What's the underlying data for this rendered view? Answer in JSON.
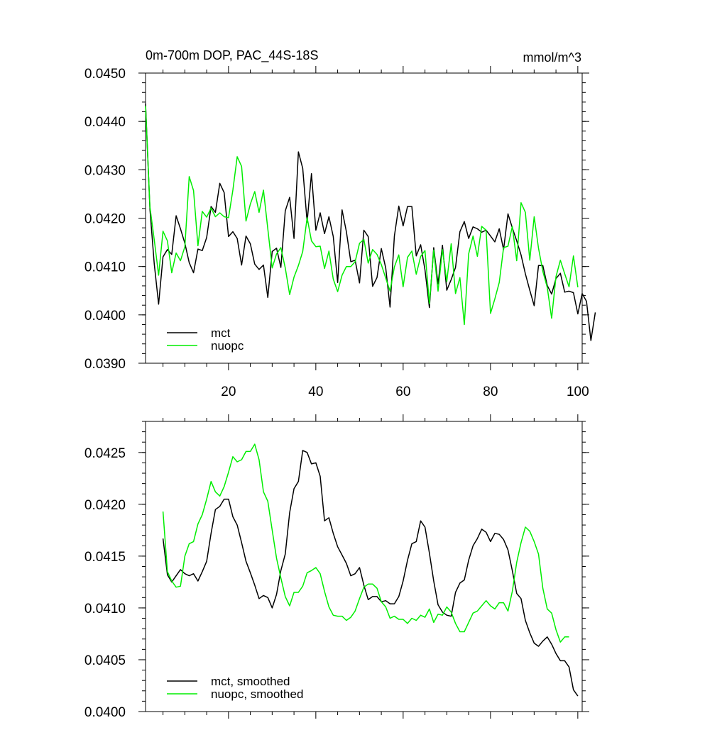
{
  "colors": {
    "mct": "#000000",
    "nuopc": "#00ee00",
    "axis": "#000000"
  },
  "chart_data": [
    {
      "type": "line",
      "title_left": "0m-700m DOP, PAC_44S-18S",
      "title_right": "mmol/m^3",
      "xlabel": "",
      "ylabel": "",
      "xlim": [
        1,
        101
      ],
      "ylim": [
        0.039,
        0.045
      ],
      "x_ticks": [
        20,
        40,
        60,
        80,
        100
      ],
      "x_tick_labels": [
        "20",
        "40",
        "60",
        "80",
        "100"
      ],
      "y_ticks": [
        0.039,
        0.04,
        0.041,
        0.042,
        0.043,
        0.044,
        0.045
      ],
      "y_tick_labels": [
        "0.0390",
        "0.0400",
        "0.0410",
        "0.0420",
        "0.0430",
        "0.0440",
        "0.0450"
      ],
      "legend_position": "bottom-left",
      "series": [
        {
          "name": "mct",
          "color_key": "mct",
          "x_start": 1,
          "values": [
            0.04437,
            0.04218,
            0.04105,
            0.04022,
            0.0412,
            0.04135,
            0.04125,
            0.04205,
            0.04178,
            0.04148,
            0.04108,
            0.04087,
            0.04136,
            0.04133,
            0.0416,
            0.04224,
            0.04212,
            0.04272,
            0.04253,
            0.04162,
            0.04172,
            0.04158,
            0.04103,
            0.04163,
            0.04147,
            0.04105,
            0.04094,
            0.04103,
            0.04036,
            0.04131,
            0.04138,
            0.04098,
            0.04215,
            0.04243,
            0.04158,
            0.04337,
            0.04303,
            0.04192,
            0.04292,
            0.04175,
            0.04211,
            0.04168,
            0.04203,
            0.04162,
            0.04067,
            0.04217,
            0.04172,
            0.0411,
            0.04113,
            0.04066,
            0.04175,
            0.04162,
            0.04059,
            0.04077,
            0.04137,
            0.04097,
            0.04016,
            0.04163,
            0.04225,
            0.04184,
            0.04224,
            0.04224,
            0.04122,
            0.04145,
            0.04093,
            0.04015,
            0.04139,
            0.04064,
            0.04144,
            0.04051,
            0.04073,
            0.04098,
            0.04172,
            0.04193,
            0.04158,
            0.04182,
            0.04178,
            0.04171,
            0.04175,
            0.04163,
            0.04151,
            0.04178,
            0.04135,
            0.04209,
            0.0418,
            0.04153,
            0.04124,
            0.04085,
            0.04051,
            0.04019,
            0.04102,
            0.04102,
            0.04061,
            0.04043,
            0.04075,
            0.04086,
            0.04047,
            0.04049,
            0.04046,
            0.04002,
            0.04044,
            0.04028,
            0.03947,
            0.04005
          ]
        },
        {
          "name": "nuopc",
          "color_key": "nuopc",
          "x_start": 1,
          "values": [
            0.04432,
            0.04223,
            0.04155,
            0.04082,
            0.04173,
            0.04153,
            0.04087,
            0.04128,
            0.04112,
            0.04141,
            0.04286,
            0.04257,
            0.04143,
            0.04214,
            0.04202,
            0.04221,
            0.04203,
            0.04211,
            0.04203,
            0.04201,
            0.04258,
            0.04327,
            0.04307,
            0.04194,
            0.04229,
            0.04255,
            0.04212,
            0.04258,
            0.04178,
            0.04097,
            0.04126,
            0.04139,
            0.04097,
            0.04042,
            0.04078,
            0.04102,
            0.04131,
            0.04201,
            0.04153,
            0.04141,
            0.04142,
            0.04096,
            0.04132,
            0.04074,
            0.04048,
            0.04082,
            0.041,
            0.041,
            0.0411,
            0.04148,
            0.04156,
            0.04107,
            0.04135,
            0.04125,
            0.04104,
            0.04076,
            0.04049,
            0.04099,
            0.04124,
            0.04058,
            0.04119,
            0.04132,
            0.04084,
            0.04121,
            0.04133,
            0.04023,
            0.04134,
            0.04049,
            0.04135,
            0.04069,
            0.04147,
            0.04044,
            0.04077,
            0.0398,
            0.04126,
            0.04163,
            0.04121,
            0.04183,
            0.04175,
            0.04003,
            0.04033,
            0.04067,
            0.04139,
            0.04142,
            0.04183,
            0.04112,
            0.04232,
            0.04212,
            0.04113,
            0.04203,
            0.04138,
            0.0409,
            0.04057,
            0.03993,
            0.04079,
            0.04113,
            0.04085,
            0.04058,
            0.04122,
            0.04057
          ]
        }
      ]
    },
    {
      "type": "line",
      "xlabel": "",
      "ylabel": "",
      "xlim": [
        1,
        101
      ],
      "ylim": [
        0.04,
        0.0428
      ],
      "x_ticks": [
        20,
        40,
        60,
        80,
        100
      ],
      "x_tick_labels": [],
      "y_ticks": [
        0.04,
        0.0405,
        0.041,
        0.0415,
        0.042,
        0.0425
      ],
      "y_tick_labels": [
        "0.0400",
        "0.0405",
        "0.0410",
        "0.0415",
        "0.0420",
        "0.0425"
      ],
      "legend_position": "bottom-left",
      "series": [
        {
          "name": "mct, smoothed",
          "color_key": "mct",
          "x_start": 5,
          "values": [
            0.04167,
            0.04132,
            0.04125,
            0.04131,
            0.04137,
            0.04133,
            0.04131,
            0.04133,
            0.04126,
            0.04135,
            0.04145,
            0.04172,
            0.04195,
            0.04198,
            0.04205,
            0.04205,
            0.04188,
            0.0418,
            0.04163,
            0.04145,
            0.04134,
            0.04122,
            0.04109,
            0.04112,
            0.0411,
            0.041,
            0.04113,
            0.04136,
            0.04152,
            0.04192,
            0.04215,
            0.04222,
            0.04252,
            0.0425,
            0.04239,
            0.0424,
            0.04227,
            0.04184,
            0.04187,
            0.04172,
            0.04159,
            0.04151,
            0.04143,
            0.04131,
            0.04133,
            0.04139,
            0.04122,
            0.04108,
            0.04111,
            0.04111,
            0.04106,
            0.04107,
            0.04104,
            0.04104,
            0.04111,
            0.04126,
            0.04146,
            0.04162,
            0.04164,
            0.04184,
            0.04178,
            0.04153,
            0.04126,
            0.04103,
            0.04096,
            0.04093,
            0.04092,
            0.04115,
            0.04124,
            0.04127,
            0.04146,
            0.0416,
            0.04167,
            0.04176,
            0.04173,
            0.04164,
            0.04172,
            0.04171,
            0.04166,
            0.04156,
            0.04136,
            0.04114,
            0.04109,
            0.04088,
            0.04076,
            0.04066,
            0.04063,
            0.04068,
            0.04072,
            0.04065,
            0.04056,
            0.04049,
            0.04049,
            0.04043,
            0.04021,
            0.04015
          ]
        },
        {
          "name": "nuopc, smoothed",
          "color_key": "nuopc",
          "x_start": 5,
          "values": [
            0.04193,
            0.04135,
            0.04126,
            0.0412,
            0.04121,
            0.0415,
            0.04162,
            0.04164,
            0.04181,
            0.0419,
            0.04205,
            0.04222,
            0.04212,
            0.04208,
            0.04217,
            0.04231,
            0.04246,
            0.04241,
            0.04243,
            0.04251,
            0.04251,
            0.04258,
            0.04243,
            0.04212,
            0.04203,
            0.04175,
            0.04148,
            0.04129,
            0.04111,
            0.04102,
            0.04115,
            0.04115,
            0.04121,
            0.04134,
            0.04136,
            0.04139,
            0.04133,
            0.04116,
            0.04101,
            0.04093,
            0.04092,
            0.04092,
            0.04088,
            0.04091,
            0.04097,
            0.04109,
            0.0412,
            0.04123,
            0.04123,
            0.04119,
            0.04106,
            0.04101,
            0.0409,
            0.04092,
            0.04089,
            0.04089,
            0.04085,
            0.0409,
            0.04088,
            0.04093,
            0.04091,
            0.04099,
            0.04086,
            0.04094,
            0.04093,
            0.04101,
            0.04096,
            0.04085,
            0.04077,
            0.04077,
            0.04086,
            0.04095,
            0.04097,
            0.04102,
            0.04107,
            0.04102,
            0.04099,
            0.04105,
            0.04105,
            0.04097,
            0.04116,
            0.04144,
            0.04163,
            0.04178,
            0.04174,
            0.04164,
            0.04152,
            0.04119,
            0.04099,
            0.04095,
            0.04079,
            0.04067,
            0.04072,
            0.04072
          ]
        }
      ]
    }
  ]
}
